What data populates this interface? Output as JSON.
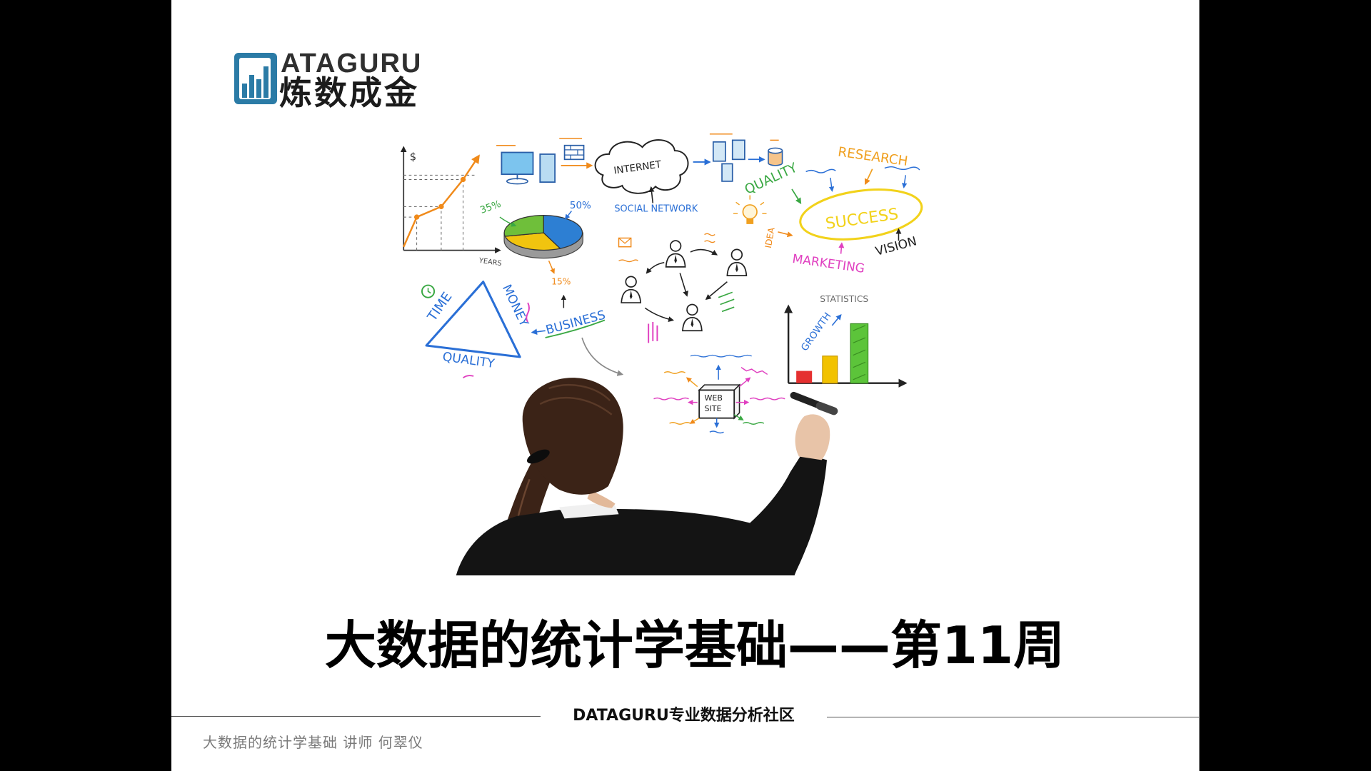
{
  "slide": {
    "logo": {
      "icon": "bar-chart-logo-icon",
      "latin": "ATAGURU",
      "chinese": "炼数成金"
    },
    "title": "大数据的统计学基础——第11周",
    "footer": {
      "center": "DATAGURU专业数据分析社区",
      "left": "大数据的统计学基础 讲师 何翠仪"
    },
    "illustration": {
      "labels": {
        "currency": "$",
        "years": "YEARS",
        "internet": "INTERNET",
        "social_network": "SOCIAL NETWORK",
        "quality_green": "QUALITY",
        "research": "RESEARCH",
        "success": "SUCCESS",
        "vision": "VISION",
        "marketing": "MARKETING",
        "idea": "IDEA",
        "pct_35": "35%",
        "pct_50": "50%",
        "pct_15": "15%",
        "time": "TIME",
        "money": "MONEY",
        "quality_blue": "QUALITY",
        "business": "BUSINESS",
        "statistics": "STATISTICS",
        "growth": "GROWTH",
        "web": "WEB",
        "site": "SITE"
      }
    }
  },
  "colors": {
    "frame": "#000000",
    "slide_bg": "#ffffff",
    "logo_blue": "#2b7ba6",
    "title_text": "#000000",
    "footer_text": "#111111",
    "caption_text": "#7a7a7a",
    "rule": "#555555"
  }
}
